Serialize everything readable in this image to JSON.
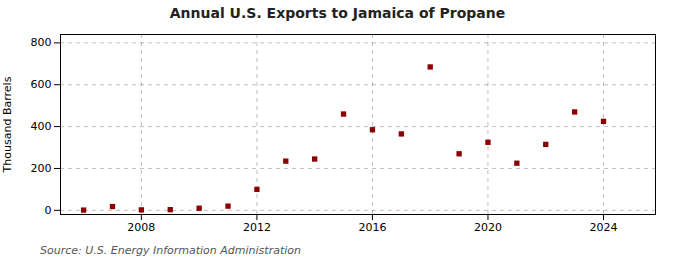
{
  "chart_data": {
    "type": "scatter",
    "title": "Annual U.S. Exports to Jamaica of Propane",
    "ylabel": "Thousand Barrels",
    "annotation": "Source: U.S. Energy Information Administration",
    "x": [
      2006,
      2007,
      2008,
      2009,
      2010,
      2011,
      2012,
      2013,
      2014,
      2015,
      2016,
      2017,
      2018,
      2019,
      2020,
      2021,
      2022,
      2023,
      2024
    ],
    "values": [
      1,
      18,
      2,
      3,
      10,
      20,
      100,
      235,
      245,
      460,
      385,
      365,
      685,
      270,
      325,
      225,
      315,
      470,
      425
    ],
    "color": "#8b0000",
    "marker": "square",
    "xlim": [
      2005.2,
      2025.8
    ],
    "xticks": [
      2008,
      2012,
      2016,
      2020,
      2024
    ],
    "ylim": [
      -20,
      840
    ],
    "yticks": [
      0,
      200,
      400,
      600,
      800
    ],
    "grid": true
  }
}
